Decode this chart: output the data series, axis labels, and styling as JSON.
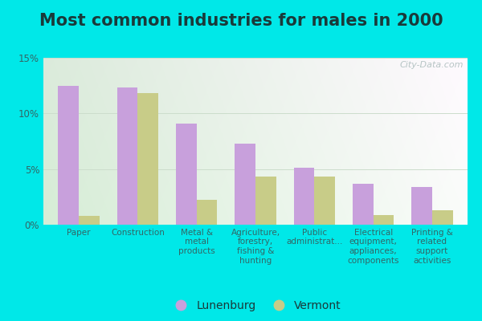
{
  "title": "Most common industries for males in 2000",
  "categories": [
    "Paper",
    "Construction",
    "Metal &\nmetal\nproducts",
    "Agriculture,\nforestry,\nfishing &\nhunting",
    "Public\nadministrat...",
    "Electrical\nequipment,\nappliances,\ncomponents",
    "Printing &\nrelated\nsupport\nactivities"
  ],
  "lunenburg_values": [
    12.5,
    12.3,
    9.1,
    7.3,
    5.1,
    3.7,
    3.4
  ],
  "vermont_values": [
    0.8,
    11.8,
    2.2,
    4.3,
    4.3,
    0.9,
    1.3
  ],
  "lunenburg_color": "#c8a0dc",
  "vermont_color": "#c8cc88",
  "background_outer": "#00e8e8",
  "ylim": [
    0,
    15
  ],
  "yticks": [
    0,
    5,
    10,
    15
  ],
  "ytick_labels": [
    "0%",
    "5%",
    "10%",
    "15%"
  ],
  "bar_width": 0.35,
  "legend_lunenburg": "Lunenburg",
  "legend_vermont": "Vermont",
  "watermark": "City-Data.com",
  "title_fontsize": 15,
  "tick_fontsize": 8.5,
  "legend_fontsize": 10,
  "title_color": "#1a3a3a",
  "tick_color": "#336666",
  "grid_color": "#ccddcc",
  "bg_grad_left": "#d8efd8",
  "bg_grad_right": "#eaf5f0"
}
